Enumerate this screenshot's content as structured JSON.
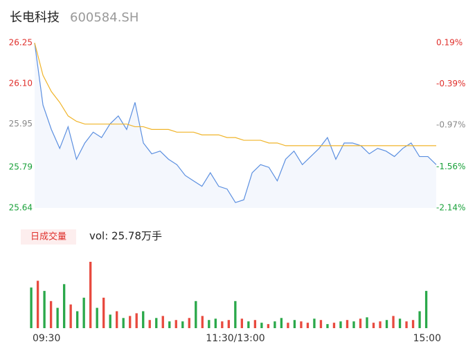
{
  "chart_data": {
    "type": "intraday",
    "title": "长电科技",
    "subtitle": "600584.SH",
    "x": [
      0,
      5,
      10,
      15,
      20,
      25,
      30,
      35,
      40,
      45,
      50,
      55,
      60,
      65,
      70,
      75,
      80,
      85,
      90,
      95,
      100,
      105,
      110,
      115,
      120,
      125,
      130,
      135,
      140,
      145,
      150,
      155,
      160,
      165,
      170,
      175,
      180,
      185,
      190,
      195,
      200,
      205,
      210,
      215,
      220,
      225,
      230,
      235,
      240
    ],
    "xlim": [
      0,
      240
    ],
    "xticks": [
      {
        "value": 0,
        "label": "09:30"
      },
      {
        "value": 120,
        "label": "11:30/13:00"
      },
      {
        "value": 240,
        "label": "15:00"
      }
    ],
    "ylim": [
      25.64,
      26.25
    ],
    "yticks": [
      25.64,
      25.79,
      25.95,
      {
        "value": 26.1,
        "label": "26.10"
      },
      26.25
    ],
    "ytick_colors": [
      "#1aa13a",
      "#1aa13a",
      "#888888",
      "#e0302c",
      "#e0302c"
    ],
    "y2lim": [
      -2.14,
      0.19
    ],
    "y2ticks": [
      {
        "value": -2.14,
        "label": "-2.14%"
      },
      {
        "value": -1.56,
        "label": "-1.56%"
      },
      {
        "value": -0.97,
        "label": "-0.97%"
      },
      {
        "value": -0.39,
        "label": "-0.39%"
      },
      {
        "value": 0.19,
        "label": "0.19%"
      }
    ],
    "series": [
      {
        "color": "#5b8fe0",
        "values": [
          26.25,
          26.02,
          25.93,
          25.86,
          25.94,
          25.82,
          25.88,
          25.92,
          25.9,
          25.95,
          25.98,
          25.93,
          26.03,
          25.88,
          25.84,
          25.85,
          25.82,
          25.8,
          25.76,
          25.74,
          25.72,
          25.77,
          25.72,
          25.71,
          25.66,
          25.67,
          25.77,
          25.8,
          25.79,
          25.74,
          25.82,
          25.85,
          25.8,
          25.83,
          25.86,
          25.9,
          25.82,
          25.88,
          25.88,
          25.87,
          25.84,
          25.86,
          25.85,
          25.83,
          25.86,
          25.88,
          25.83,
          25.83,
          25.8
        ]
      },
      {
        "color": "#f0b429",
        "values": [
          26.25,
          26.13,
          26.07,
          26.03,
          25.98,
          25.96,
          25.95,
          25.95,
          25.95,
          25.95,
          25.95,
          25.95,
          25.94,
          25.94,
          25.93,
          25.93,
          25.93,
          25.92,
          25.92,
          25.92,
          25.91,
          25.91,
          25.91,
          25.9,
          25.9,
          25.89,
          25.89,
          25.89,
          25.88,
          25.88,
          25.87,
          25.87,
          25.87,
          25.87,
          25.87,
          25.87,
          25.87,
          25.87,
          25.87,
          25.87,
          25.87,
          25.87,
          25.87,
          25.87,
          25.87,
          25.87,
          25.87,
          25.87,
          25.87
        ]
      }
    ],
    "volume_label": "日成交量",
    "volume_text": "vol: 25.78万手",
    "volume": {
      "vlim": [
        0,
        100
      ],
      "values": [
        60,
        70,
        55,
        40,
        30,
        65,
        35,
        25,
        45,
        98,
        30,
        45,
        20,
        25,
        15,
        18,
        22,
        25,
        12,
        15,
        18,
        10,
        12,
        10,
        15,
        40,
        18,
        12,
        14,
        10,
        12,
        40,
        14,
        10,
        12,
        8,
        6,
        10,
        15,
        8,
        12,
        10,
        8,
        14,
        12,
        6,
        8,
        10,
        12,
        10,
        14,
        16,
        8,
        10,
        12,
        18,
        14,
        10,
        12,
        25,
        55
      ],
      "dirs": [
        "d",
        "u",
        "d",
        "u",
        "d",
        "d",
        "u",
        "d",
        "d",
        "u",
        "d",
        "u",
        "d",
        "u",
        "d",
        "u",
        "u",
        "d",
        "u",
        "d",
        "u",
        "d",
        "u",
        "d",
        "u",
        "d",
        "u",
        "d",
        "d",
        "u",
        "u",
        "d",
        "u",
        "d",
        "u",
        "d",
        "u",
        "d",
        "d",
        "u",
        "d",
        "u",
        "u",
        "d",
        "u",
        "d",
        "u",
        "d",
        "u",
        "d",
        "u",
        "d",
        "u",
        "u",
        "d",
        "u",
        "d",
        "u",
        "u",
        "d",
        "d"
      ],
      "colors": {
        "u": "#e84a3f",
        "d": "#2aa84a"
      }
    }
  }
}
